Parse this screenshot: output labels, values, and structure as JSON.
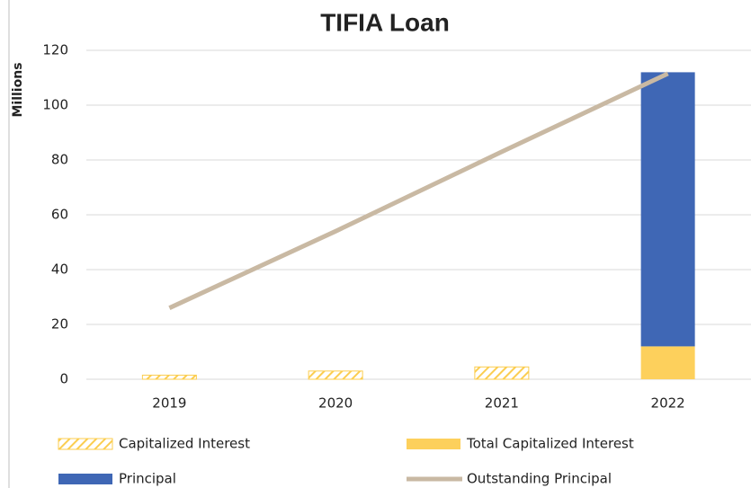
{
  "chart_data": {
    "type": "bar",
    "stacked": true,
    "title": "TIFIA Loan",
    "y_label": "Millions",
    "categories": [
      "2019",
      "2020",
      "2021",
      "2022"
    ],
    "series": [
      {
        "name": "Capitalized Interest",
        "type": "bar",
        "pattern": "hatch",
        "color": "#fbcd4f",
        "values": [
          1.5,
          3,
          4.5,
          null
        ]
      },
      {
        "name": "Total Capitalized Interest",
        "type": "bar",
        "color": "#fdd05c",
        "values": [
          null,
          null,
          null,
          12
        ]
      },
      {
        "name": "Principal",
        "type": "bar",
        "color": "#3f67b5",
        "values": [
          null,
          null,
          null,
          100
        ]
      },
      {
        "name": "Outstanding Principal",
        "type": "line",
        "color": "#c9b9a3",
        "values": [
          26,
          54,
          83,
          111.5
        ]
      }
    ],
    "ylim": [
      0,
      120
    ],
    "yticks": [
      0,
      20,
      40,
      60,
      80,
      100,
      120
    ],
    "grid": true,
    "legend": "bottom"
  }
}
